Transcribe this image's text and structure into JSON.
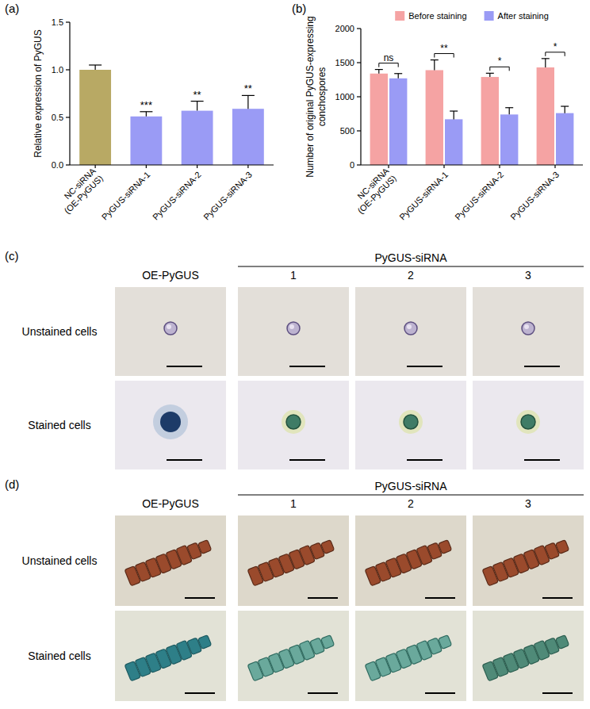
{
  "chart_data": [
    {
      "type": "bar",
      "panel_label": "(a)",
      "y_label": "Relative expression of PyGUS",
      "categories": [
        "NC-siRNA (OE-PyGUS)",
        "PyGUS-siRNA-1",
        "PyGUS-siRNA-2",
        "PyGUS-siRNA-3"
      ],
      "values": [
        1.0,
        0.51,
        0.57,
        0.59
      ],
      "errors": [
        0.05,
        0.05,
        0.1,
        0.14
      ],
      "colors": [
        "#b8a964",
        "#9a9bf5",
        "#9a9bf5",
        "#9a9bf5"
      ],
      "ylim": [
        0,
        1.5
      ],
      "yticks": [
        {
          "value": 0,
          "label": "0.0"
        },
        {
          "value": 0.5,
          "label": "0.5"
        },
        {
          "value": 1,
          "label": "1.0"
        },
        {
          "value": 1.5,
          "label": "1.5"
        }
      ],
      "grid": false,
      "annotations": [
        {
          "category": "PyGUS-siRNA-1",
          "text": "***"
        },
        {
          "category": "PyGUS-siRNA-2",
          "text": "**"
        },
        {
          "category": "PyGUS-siRNA-3",
          "text": "**"
        }
      ]
    },
    {
      "type": "bar",
      "panel_label": "(b)",
      "y_label": "Number of original PyGUS-expressing conchospores",
      "categories": [
        "NC-siRNA (OE-PyGUS)",
        "PyGUS-siRNA-1",
        "PyGUS-siRNA-2",
        "PyGUS-siRNA-3"
      ],
      "series": [
        {
          "name": "Before staining",
          "color": "#f5a3a3",
          "values": [
            1340,
            1390,
            1290,
            1430
          ],
          "errors": [
            60,
            150,
            55,
            130
          ]
        },
        {
          "name": "After staining",
          "color": "#9a9bf5",
          "values": [
            1270,
            670,
            740,
            760
          ],
          "errors": [
            70,
            120,
            100,
            100
          ]
        }
      ],
      "ylim": [
        0,
        2000
      ],
      "yticks": [
        0,
        500,
        1000,
        1500,
        2000
      ],
      "grid": false,
      "legend": "top",
      "annotations": [
        {
          "category": "NC-siRNA (OE-PyGUS)",
          "text": "ns"
        },
        {
          "category": "PyGUS-siRNA-1",
          "text": "**"
        },
        {
          "category": "PyGUS-siRNA-2",
          "text": "*"
        },
        {
          "category": "PyGUS-siRNA-3",
          "text": "*"
        }
      ]
    }
  ],
  "image_panels": [
    {
      "panel_label": "(c)",
      "first_column": "OE-PyGUS",
      "group_header": "PyGUS-siRNA",
      "group_columns": [
        "1",
        "2",
        "3"
      ],
      "rows": [
        "Unstained cells",
        "Stained cells"
      ]
    },
    {
      "panel_label": "(d)",
      "first_column": "OE-PyGUS",
      "group_header": "PyGUS-siRNA",
      "group_columns": [
        "1",
        "2",
        "3"
      ],
      "rows": [
        "Unstained cells",
        "Stained cells"
      ]
    }
  ]
}
